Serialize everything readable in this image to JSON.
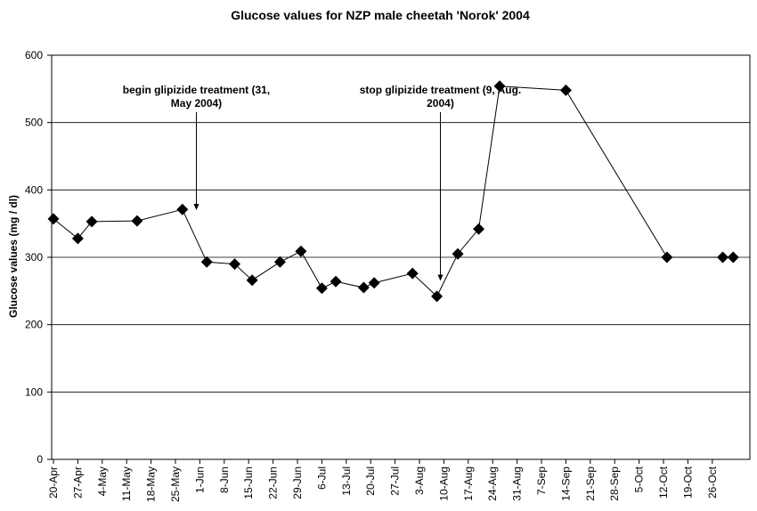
{
  "chart_data": {
    "type": "line",
    "title": "Glucose values for NZP male cheetah 'Norok' 2004",
    "ylabel": "Glucose values (mg / dl)",
    "xlabel": "",
    "ylim": [
      0,
      600
    ],
    "yticks": [
      "0",
      "100",
      "200",
      "300",
      "400",
      "500",
      "600"
    ],
    "x_tick_labels": [
      "20-Apr",
      "27-Apr",
      "4-May",
      "11-May",
      "18-May",
      "25-May",
      "1-Jun",
      "8-Jun",
      "15-Jun",
      "22-Jun",
      "29-Jun",
      "6-Jul",
      "13-Jul",
      "20-Jul",
      "27-Jul",
      "3-Aug",
      "10-Aug",
      "17-Aug",
      "24-Aug",
      "31-Aug",
      "7-Sep",
      "14-Sep",
      "21-Sep",
      "28-Sep",
      "5-Oct",
      "12-Oct",
      "19-Oct",
      "26-Oct"
    ],
    "grid": "horizontal",
    "marker": "diamond",
    "line_color": "#000000",
    "series": [
      {
        "x": [
          "2004-04-20",
          "2004-04-27",
          "2004-05-01",
          "2004-05-14",
          "2004-05-27",
          "2004-06-03",
          "2004-06-11",
          "2004-06-16",
          "2004-06-24",
          "2004-06-30",
          "2004-07-06",
          "2004-07-10",
          "2004-07-18",
          "2004-07-21",
          "2004-08-01",
          "2004-08-08",
          "2004-08-14",
          "2004-08-20",
          "2004-08-26",
          "2004-09-14",
          "2004-10-13",
          "2004-10-29",
          "2004-11-01"
        ],
        "values": [
          357,
          328,
          353,
          354,
          371,
          293,
          290,
          266,
          293,
          309,
          254,
          264,
          255,
          262,
          276,
          242,
          305,
          342,
          554,
          548,
          300,
          300,
          300
        ]
      }
    ],
    "annotations": [
      {
        "lines": [
          "begin glipizide treatment (31,",
          "May 2004)"
        ],
        "x": "2004-05-31",
        "y": 370
      },
      {
        "lines": [
          "stop glipizide treatment (9, Aug.",
          "2004)"
        ],
        "x": "2004-08-09",
        "y": 265
      }
    ]
  }
}
